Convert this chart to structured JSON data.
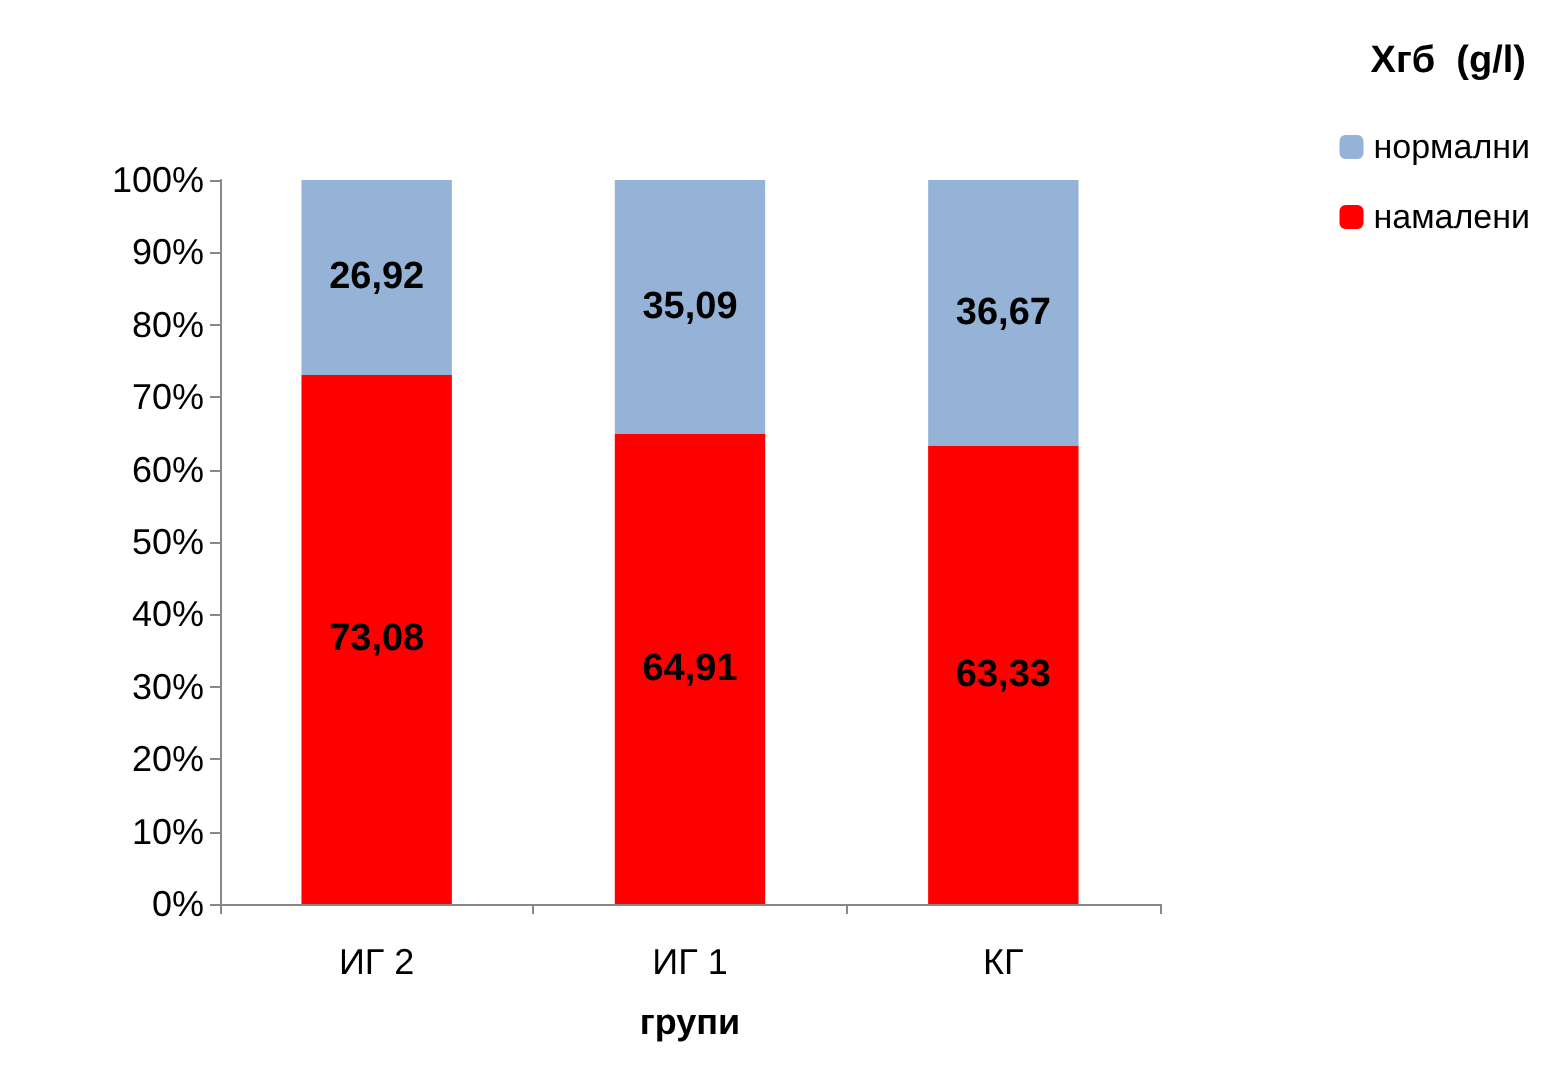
{
  "chart_data": {
    "type": "bar",
    "stacked": true,
    "legend_title": "Хгб  (g/l)",
    "xlabel": "групи",
    "categories": [
      "ИГ 2",
      "ИГ 1",
      "КГ"
    ],
    "series": [
      {
        "name": "намалени",
        "color": "#ff0000",
        "values": [
          73.08,
          64.91,
          63.33
        ],
        "value_labels": [
          "73,08",
          "64,91",
          "63,33"
        ]
      },
      {
        "name": "нормални",
        "color": "#95b3d7",
        "values": [
          26.92,
          35.09,
          36.67
        ],
        "value_labels": [
          "26,92",
          "35,09",
          "36,67"
        ]
      }
    ],
    "ylim": [
      0,
      100
    ],
    "yticks": [
      {
        "value": 0,
        "label": "0%"
      },
      {
        "value": 10,
        "label": "10%"
      },
      {
        "value": 20,
        "label": "20%"
      },
      {
        "value": 30,
        "label": "30%"
      },
      {
        "value": 40,
        "label": "40%"
      },
      {
        "value": 50,
        "label": "50%"
      },
      {
        "value": 60,
        "label": "60%"
      },
      {
        "value": 70,
        "label": "70%"
      },
      {
        "value": 80,
        "label": "80%"
      },
      {
        "value": 90,
        "label": "90%"
      },
      {
        "value": 100,
        "label": "100%"
      }
    ],
    "grid": false,
    "legend": "top right"
  }
}
